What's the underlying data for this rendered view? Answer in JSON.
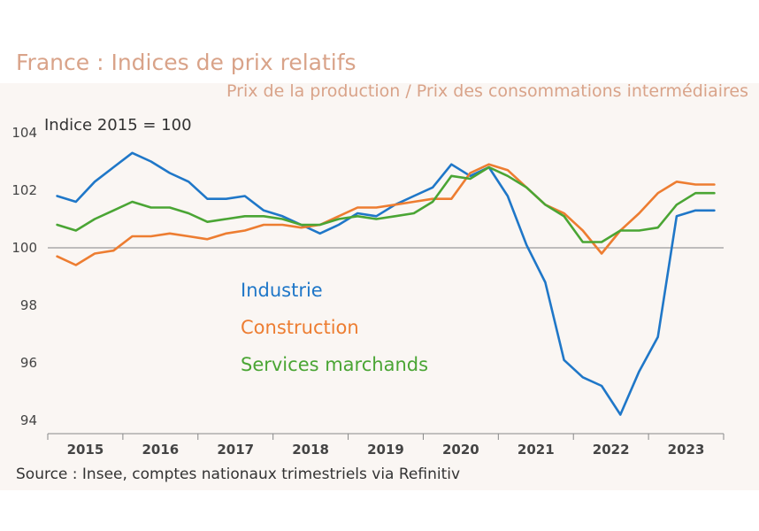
{
  "header": {
    "title": "France : Indices de prix relatifs",
    "subtitle": "Prix de la production / Prix des consommations intermédiaires"
  },
  "footer": {
    "source": "Source :  Insee, comptes nationaux trimestriels via Refinitiv"
  },
  "chart_data": {
    "type": "line",
    "title": "France : Indices de prix relatifs",
    "subtitle": "Prix de la production / Prix des consommations intermédiaires",
    "ylabel": "Indice 2015 = 100",
    "ylim": [
      94,
      104
    ],
    "yticks": [
      94,
      96,
      98,
      100,
      102,
      104
    ],
    "xlim": [
      2015.0,
      2024.0
    ],
    "reference_line": 100,
    "xtick_labels": [
      "2015",
      "2016",
      "2017",
      "2018",
      "2019",
      "2020",
      "2021",
      "2022",
      "2023"
    ],
    "xtick_centers": [
      2015.5,
      2016.5,
      2017.5,
      2018.5,
      2019.5,
      2020.5,
      2021.5,
      2022.5,
      2023.5
    ],
    "x": [
      2015.125,
      2015.375,
      2015.625,
      2015.875,
      2016.125,
      2016.375,
      2016.625,
      2016.875,
      2017.125,
      2017.375,
      2017.625,
      2017.875,
      2018.125,
      2018.375,
      2018.625,
      2018.875,
      2019.125,
      2019.375,
      2019.625,
      2019.875,
      2020.125,
      2020.375,
      2020.625,
      2020.875,
      2021.125,
      2021.375,
      2021.625,
      2021.875,
      2022.125,
      2022.375,
      2022.625,
      2022.875,
      2023.125,
      2023.375,
      2023.625,
      2023.875
    ],
    "series": [
      {
        "name": "Industrie",
        "color": "#1f77c8",
        "values": [
          101.8,
          101.6,
          102.3,
          102.8,
          103.3,
          103.0,
          102.6,
          102.3,
          101.7,
          101.7,
          101.8,
          101.3,
          101.1,
          100.8,
          100.5,
          100.8,
          101.2,
          101.1,
          101.5,
          101.8,
          102.1,
          102.9,
          102.5,
          102.8,
          101.8,
          100.1,
          98.8,
          96.1,
          95.5,
          95.2,
          94.2,
          95.7,
          96.9,
          101.1,
          101.3,
          101.3
        ]
      },
      {
        "name": "Construction",
        "color": "#ed7d31",
        "values": [
          99.7,
          99.4,
          99.8,
          99.9,
          100.4,
          100.4,
          100.5,
          100.4,
          100.3,
          100.5,
          100.6,
          100.8,
          100.8,
          100.7,
          100.8,
          101.1,
          101.4,
          101.4,
          101.5,
          101.6,
          101.7,
          101.7,
          102.6,
          102.9,
          102.7,
          102.1,
          101.5,
          101.2,
          100.6,
          99.8,
          100.6,
          101.2,
          101.9,
          102.3,
          102.2,
          102.2
        ]
      },
      {
        "name": "Services marchands",
        "color": "#4aa534",
        "values": [
          100.8,
          100.6,
          101.0,
          101.3,
          101.6,
          101.4,
          101.4,
          101.2,
          100.9,
          101.0,
          101.1,
          101.1,
          101.0,
          100.8,
          100.8,
          101.0,
          101.1,
          101.0,
          101.1,
          101.2,
          101.6,
          102.5,
          102.4,
          102.8,
          102.5,
          102.1,
          101.5,
          101.1,
          100.2,
          100.2,
          100.6,
          100.6,
          100.7,
          101.5,
          101.9,
          101.9
        ]
      }
    ]
  }
}
